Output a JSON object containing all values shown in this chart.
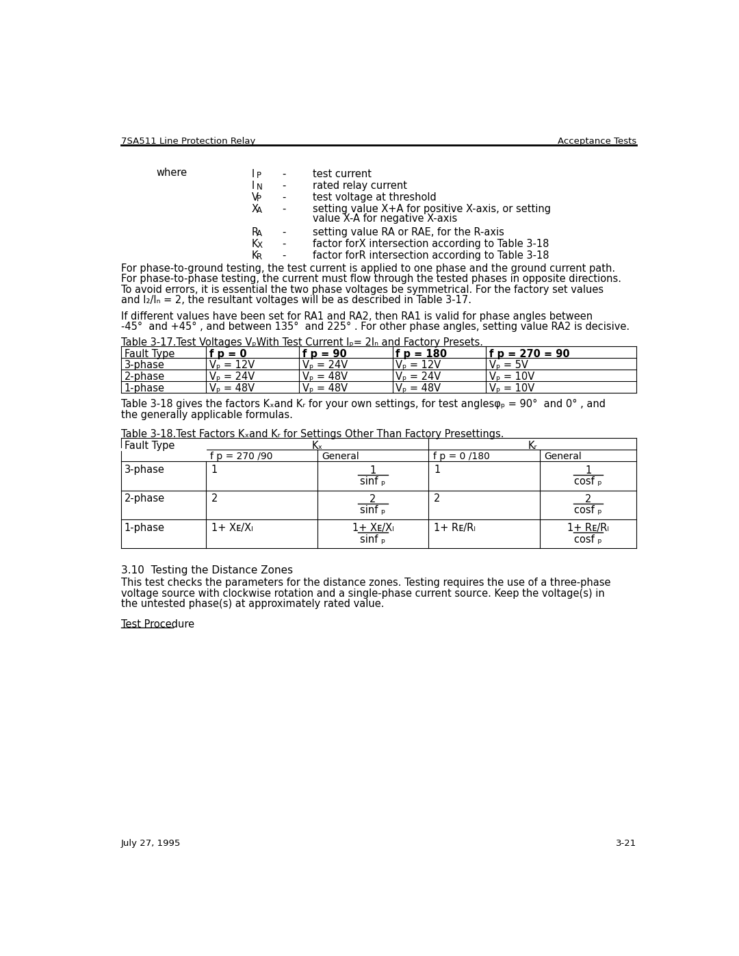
{
  "page_header_left": "7SA511 Line Protection Relay",
  "page_header_right": "Acceptance Tests",
  "page_footer_left": "July 27, 1995",
  "page_footer_right": "3-21",
  "bg_color": "#ffffff",
  "text_color": "#000000",
  "where_label": "where",
  "where_items": [
    [
      "I",
      "P",
      "test current"
    ],
    [
      "I",
      "N",
      "rated relay current"
    ],
    [
      "V",
      "P",
      "test voltage at threshold"
    ],
    [
      "X",
      "A",
      "setting value X+A for positive X-axis, or setting\nvalue X-A for negative X-axis"
    ],
    [
      "R",
      "A",
      "setting value RA or RAE, for the R-axis"
    ],
    [
      "K",
      "X",
      "factor forX intersection according to Table 3-18"
    ],
    [
      "K",
      "R",
      "factor forR intersection according to Table 3-18"
    ]
  ],
  "para1_lines": [
    "For phase-to-ground testing, the test current is applied to one phase and the ground current path.",
    "For phase-to-phase testing, the current must flow through the tested phases in opposite directions.",
    "To avoid errors, it is essential the two phase voltages be symmetrical. For the factory set values",
    "and I₂/Iₙ = 2, the resultant voltages will be as described in Table 3-17."
  ],
  "para2_lines": [
    "If different values have been set for RA1 and RA2, then RA1 is valid for phase angles between",
    "-45°  and +45° , and between 135°  and 225° . For other phase angles, setting value RA2 is decisive."
  ],
  "table1_title": "Table 3-17.Test Voltages VₚWith Test Current Iₚ= 2Iₙ and Factory Presets.",
  "table1_headers": [
    "Fault Type",
    "f p = 0",
    "f p = 90",
    "f p = 180",
    "f p = 270 = 90"
  ],
  "table1_headers_bold": [
    false,
    true,
    true,
    true,
    true
  ],
  "table1_rows": [
    [
      "3-phase",
      "Vₚ = 12V",
      "Vₚ = 24V",
      "Vₚ = 12V",
      "Vₚ = 5V"
    ],
    [
      "2-phase",
      "Vₚ = 24V",
      "Vₚ = 48V",
      "Vₚ = 24V",
      "Vₚ = 10V"
    ],
    [
      "1-phase",
      "Vₚ = 48V",
      "Vₚ = 48V",
      "Vₚ = 48V",
      "Vₚ = 10V"
    ]
  ],
  "para3_lines": [
    "Table 3-18 gives the factors Kₓand Kᵣ for your own settings, for test anglesφₚ = 90°  and 0° , and",
    "the generally applicable formulas."
  ],
  "table2_title": "Table 3-18.Test Factors Kₓand Kᵣ for Settings Other Than Factory Presettings.",
  "section_title": "3.10  Testing the Distance Zones",
  "section_body_lines": [
    "This test checks the parameters for the distance zones. Testing requires the use of a three-phase",
    "voltage source with clockwise rotation and a single-phase current source. Keep the voltage(s) in",
    "the untested phase(s) at approximately rated value."
  ],
  "test_procedure": "Test Procedure"
}
